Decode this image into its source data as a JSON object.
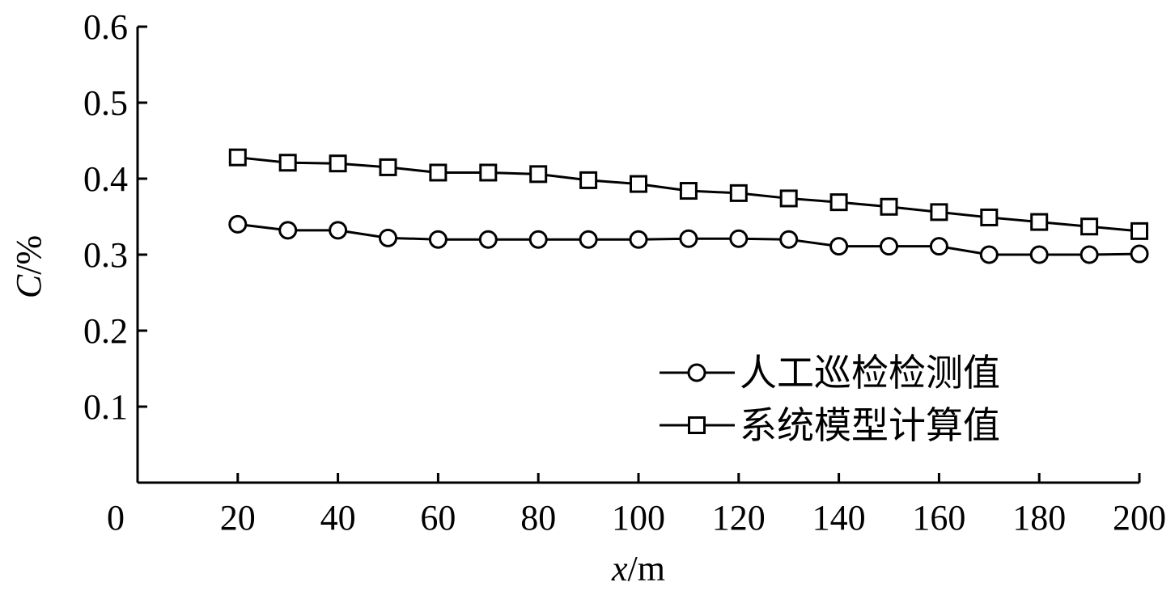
{
  "chart_data": {
    "type": "line",
    "xlabel_var": "x",
    "xlabel_unit": "/m",
    "ylabel_var": "C",
    "ylabel_unit": "/%",
    "xlim": [
      0,
      200
    ],
    "ylim": [
      0,
      0.6
    ],
    "x_ticks": [
      0,
      20,
      40,
      60,
      80,
      100,
      120,
      140,
      160,
      180,
      200
    ],
    "y_ticks": [
      0.1,
      0.2,
      0.3,
      0.4,
      0.5,
      0.6
    ],
    "y_tick_labels": [
      "0.1",
      "0.2",
      "0.3",
      "0.4",
      "0.5",
      "0.6"
    ],
    "grid": false,
    "legend_position": "bottom-right",
    "x": [
      20,
      30,
      40,
      50,
      60,
      70,
      80,
      90,
      100,
      110,
      120,
      130,
      140,
      150,
      160,
      170,
      180,
      190,
      200
    ],
    "series": [
      {
        "name": "人工巡检检测值",
        "marker": "circle",
        "color": "#000000",
        "values": [
          0.34,
          0.332,
          0.332,
          0.322,
          0.32,
          0.32,
          0.32,
          0.32,
          0.32,
          0.321,
          0.321,
          0.32,
          0.311,
          0.311,
          0.311,
          0.3,
          0.3,
          0.3,
          0.301
        ]
      },
      {
        "name": "系统模型计算值",
        "marker": "square",
        "color": "#000000",
        "values": [
          0.428,
          0.421,
          0.42,
          0.415,
          0.408,
          0.408,
          0.406,
          0.398,
          0.393,
          0.384,
          0.381,
          0.374,
          0.369,
          0.363,
          0.356,
          0.349,
          0.343,
          0.337,
          0.331
        ]
      }
    ]
  }
}
